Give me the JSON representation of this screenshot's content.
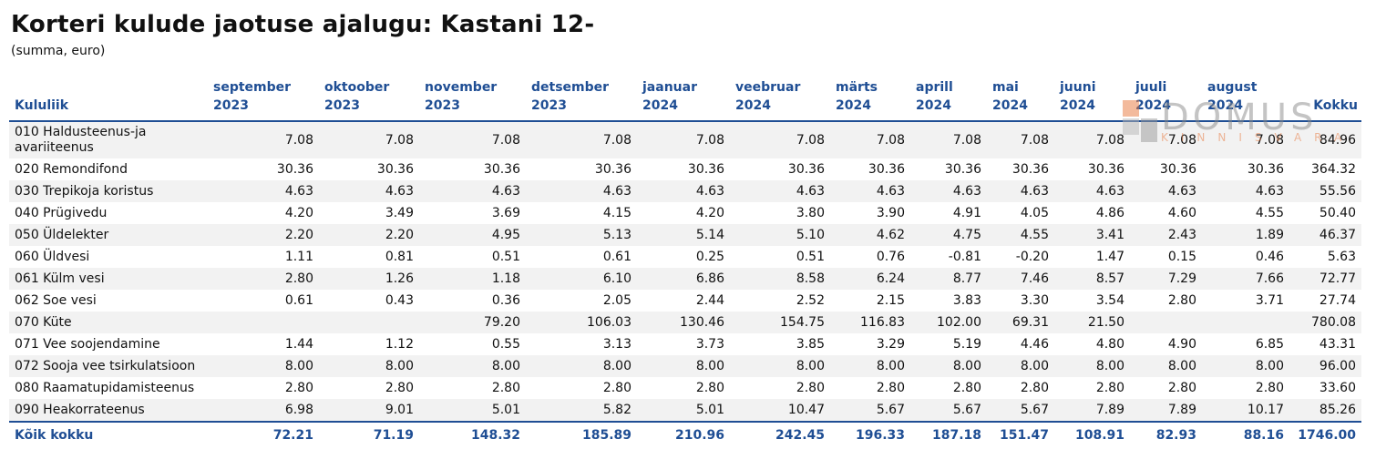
{
  "title": "Korteri kulude jaotuse ajalugu: Kastani 12-",
  "subtitle": "(summa, euro)",
  "logo": {
    "word": "DOMUS",
    "sub": "KINNISVARA"
  },
  "columns": [
    {
      "l1": "Kululiik",
      "l2": ""
    },
    {
      "l1": "september",
      "l2": "2023"
    },
    {
      "l1": "oktoober",
      "l2": "2023"
    },
    {
      "l1": "november",
      "l2": "2023"
    },
    {
      "l1": "detsember",
      "l2": "2023"
    },
    {
      "l1": "jaanuar",
      "l2": "2024"
    },
    {
      "l1": "veebruar",
      "l2": "2024"
    },
    {
      "l1": "märts",
      "l2": "2024"
    },
    {
      "l1": "aprill",
      "l2": "2024"
    },
    {
      "l1": "mai",
      "l2": "2024"
    },
    {
      "l1": "juuni",
      "l2": "2024"
    },
    {
      "l1": "juuli",
      "l2": "2024"
    },
    {
      "l1": "august",
      "l2": "2024"
    },
    {
      "l1": "Kokku",
      "l2": ""
    }
  ],
  "rows": [
    {
      "label": "010 Haldusteenus-ja avariiteenus",
      "values": [
        "7.08",
        "7.08",
        "7.08",
        "7.08",
        "7.08",
        "7.08",
        "7.08",
        "7.08",
        "7.08",
        "7.08",
        "7.08",
        "7.08",
        "84.96"
      ]
    },
    {
      "label": "020 Remondifond",
      "values": [
        "30.36",
        "30.36",
        "30.36",
        "30.36",
        "30.36",
        "30.36",
        "30.36",
        "30.36",
        "30.36",
        "30.36",
        "30.36",
        "30.36",
        "364.32"
      ]
    },
    {
      "label": "030 Trepikoja koristus",
      "values": [
        "4.63",
        "4.63",
        "4.63",
        "4.63",
        "4.63",
        "4.63",
        "4.63",
        "4.63",
        "4.63",
        "4.63",
        "4.63",
        "4.63",
        "55.56"
      ]
    },
    {
      "label": "040 Prügivedu",
      "values": [
        "4.20",
        "3.49",
        "3.69",
        "4.15",
        "4.20",
        "3.80",
        "3.90",
        "4.91",
        "4.05",
        "4.86",
        "4.60",
        "4.55",
        "50.40"
      ]
    },
    {
      "label": "050 Üldelekter",
      "values": [
        "2.20",
        "2.20",
        "4.95",
        "5.13",
        "5.14",
        "5.10",
        "4.62",
        "4.75",
        "4.55",
        "3.41",
        "2.43",
        "1.89",
        "46.37"
      ]
    },
    {
      "label": "060 Üldvesi",
      "values": [
        "1.11",
        "0.81",
        "0.51",
        "0.61",
        "0.25",
        "0.51",
        "0.76",
        "-0.81",
        "-0.20",
        "1.47",
        "0.15",
        "0.46",
        "5.63"
      ]
    },
    {
      "label": "061 Külm vesi",
      "values": [
        "2.80",
        "1.26",
        "1.18",
        "6.10",
        "6.86",
        "8.58",
        "6.24",
        "8.77",
        "7.46",
        "8.57",
        "7.29",
        "7.66",
        "72.77"
      ]
    },
    {
      "label": "062 Soe vesi",
      "values": [
        "0.61",
        "0.43",
        "0.36",
        "2.05",
        "2.44",
        "2.52",
        "2.15",
        "3.83",
        "3.30",
        "3.54",
        "2.80",
        "3.71",
        "27.74"
      ]
    },
    {
      "label": "070 Küte",
      "values": [
        "",
        "",
        "79.20",
        "106.03",
        "130.46",
        "154.75",
        "116.83",
        "102.00",
        "69.31",
        "21.50",
        "",
        "",
        "780.08"
      ]
    },
    {
      "label": "071 Vee soojendamine",
      "values": [
        "1.44",
        "1.12",
        "0.55",
        "3.13",
        "3.73",
        "3.85",
        "3.29",
        "5.19",
        "4.46",
        "4.80",
        "4.90",
        "6.85",
        "43.31"
      ]
    },
    {
      "label": "072 Sooja vee tsirkulatsioon",
      "values": [
        "8.00",
        "8.00",
        "8.00",
        "8.00",
        "8.00",
        "8.00",
        "8.00",
        "8.00",
        "8.00",
        "8.00",
        "8.00",
        "8.00",
        "96.00"
      ]
    },
    {
      "label": "080 Raamatupidamisteenus",
      "values": [
        "2.80",
        "2.80",
        "2.80",
        "2.80",
        "2.80",
        "2.80",
        "2.80",
        "2.80",
        "2.80",
        "2.80",
        "2.80",
        "2.80",
        "33.60"
      ]
    },
    {
      "label": "090 Heakorrateenus",
      "values": [
        "6.98",
        "9.01",
        "5.01",
        "5.82",
        "5.01",
        "10.47",
        "5.67",
        "5.67",
        "5.67",
        "7.89",
        "7.89",
        "10.17",
        "85.26"
      ]
    }
  ],
  "total": {
    "label": "Kõik kokku",
    "values": [
      "72.21",
      "71.19",
      "148.32",
      "185.89",
      "210.96",
      "242.45",
      "196.33",
      "187.18",
      "151.47",
      "108.91",
      "82.93",
      "88.16",
      "1746.00"
    ]
  }
}
